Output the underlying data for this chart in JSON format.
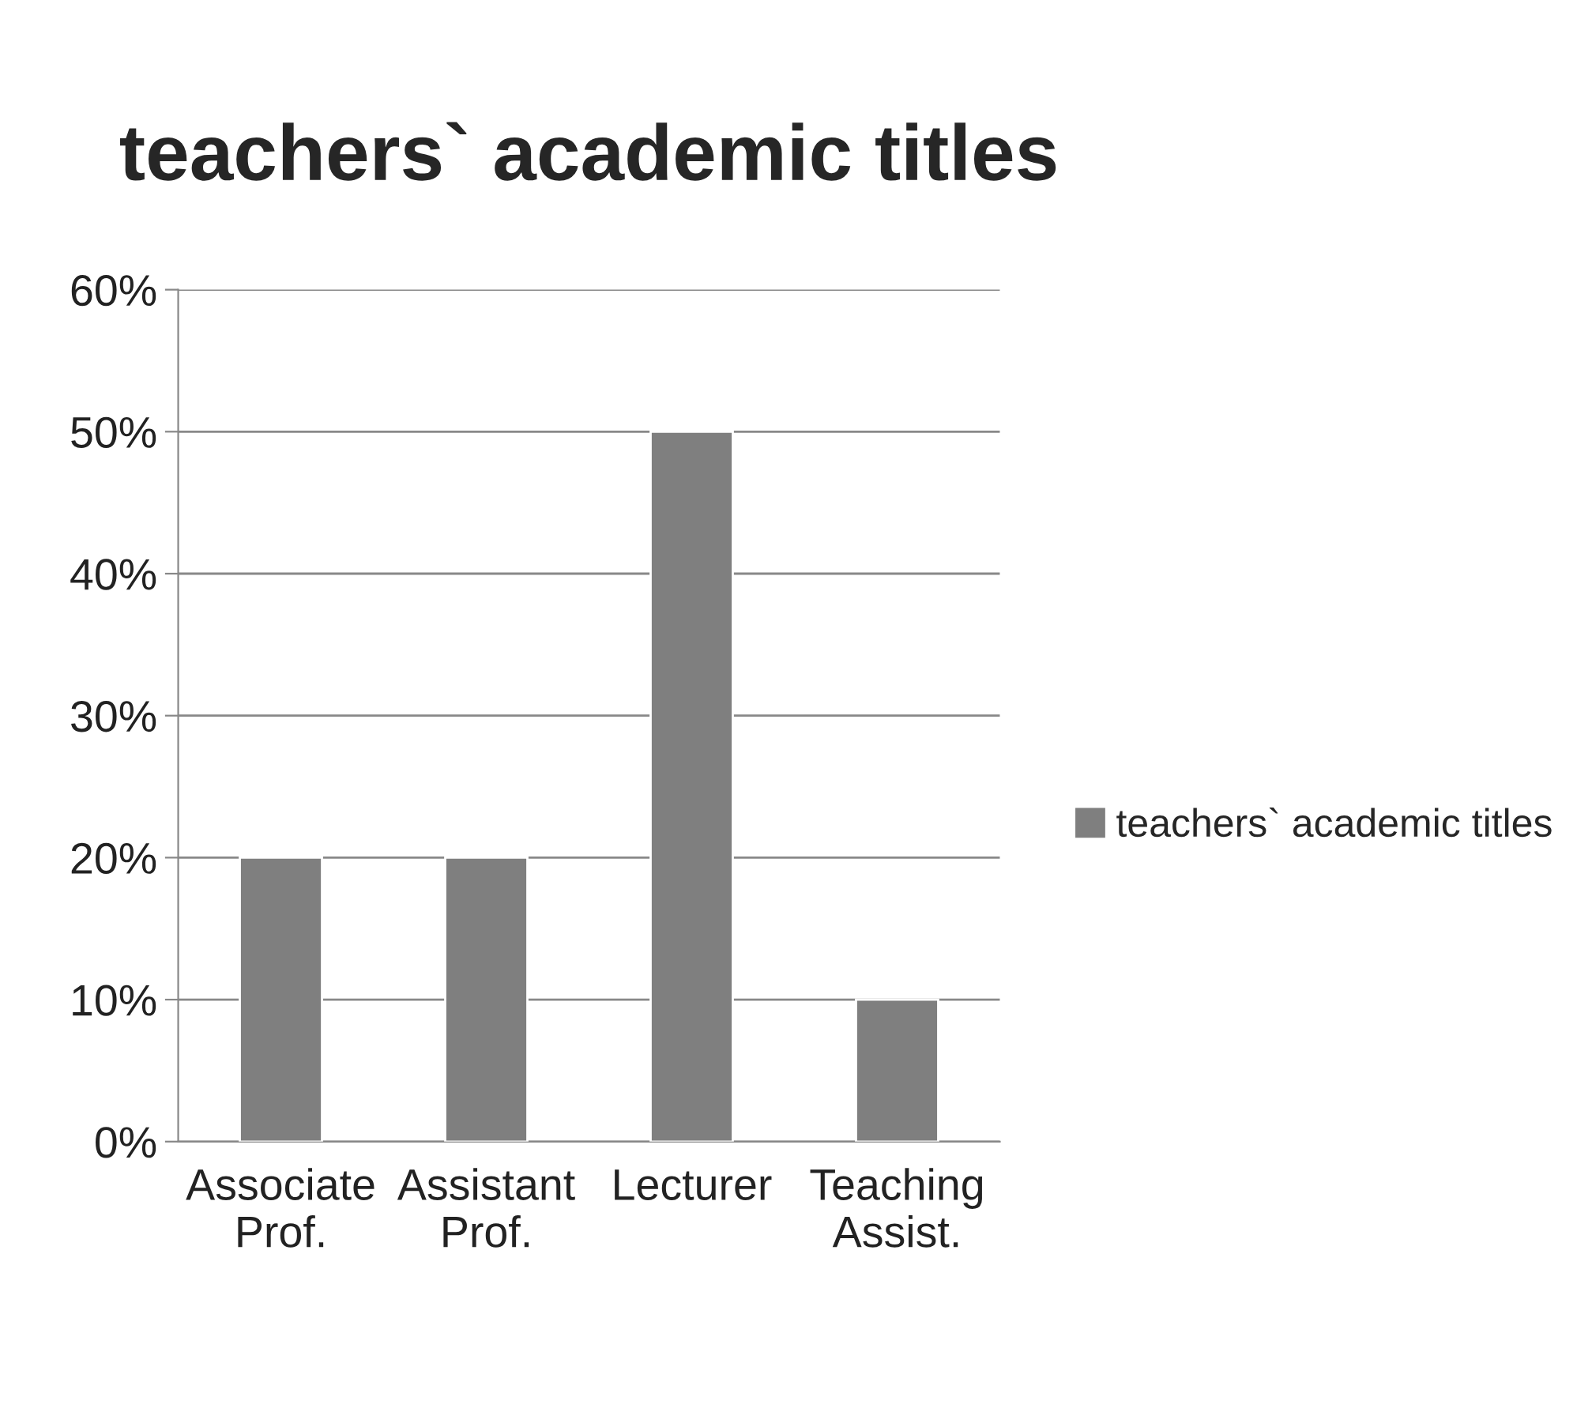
{
  "chart_data": {
    "type": "bar",
    "title": "teachers` academic titles",
    "categories": [
      "Associate\nProf.",
      "Assistant\nProf.",
      "Lecturer",
      "Teaching\nAssist."
    ],
    "series": [
      {
        "name": "teachers` academic titles",
        "color": "#7f7f7f",
        "values": [
          20,
          20,
          50,
          10
        ]
      }
    ],
    "ylim": [
      0,
      60
    ],
    "yticks": [
      {
        "value": 0,
        "label": "0%"
      },
      {
        "value": 10,
        "label": "10%"
      },
      {
        "value": 20,
        "label": "20%"
      },
      {
        "value": 30,
        "label": "30%"
      },
      {
        "value": 40,
        "label": "40%"
      },
      {
        "value": 50,
        "label": "50%"
      },
      {
        "value": 60,
        "label": "60%"
      }
    ],
    "grid": "y",
    "legend": "right"
  }
}
